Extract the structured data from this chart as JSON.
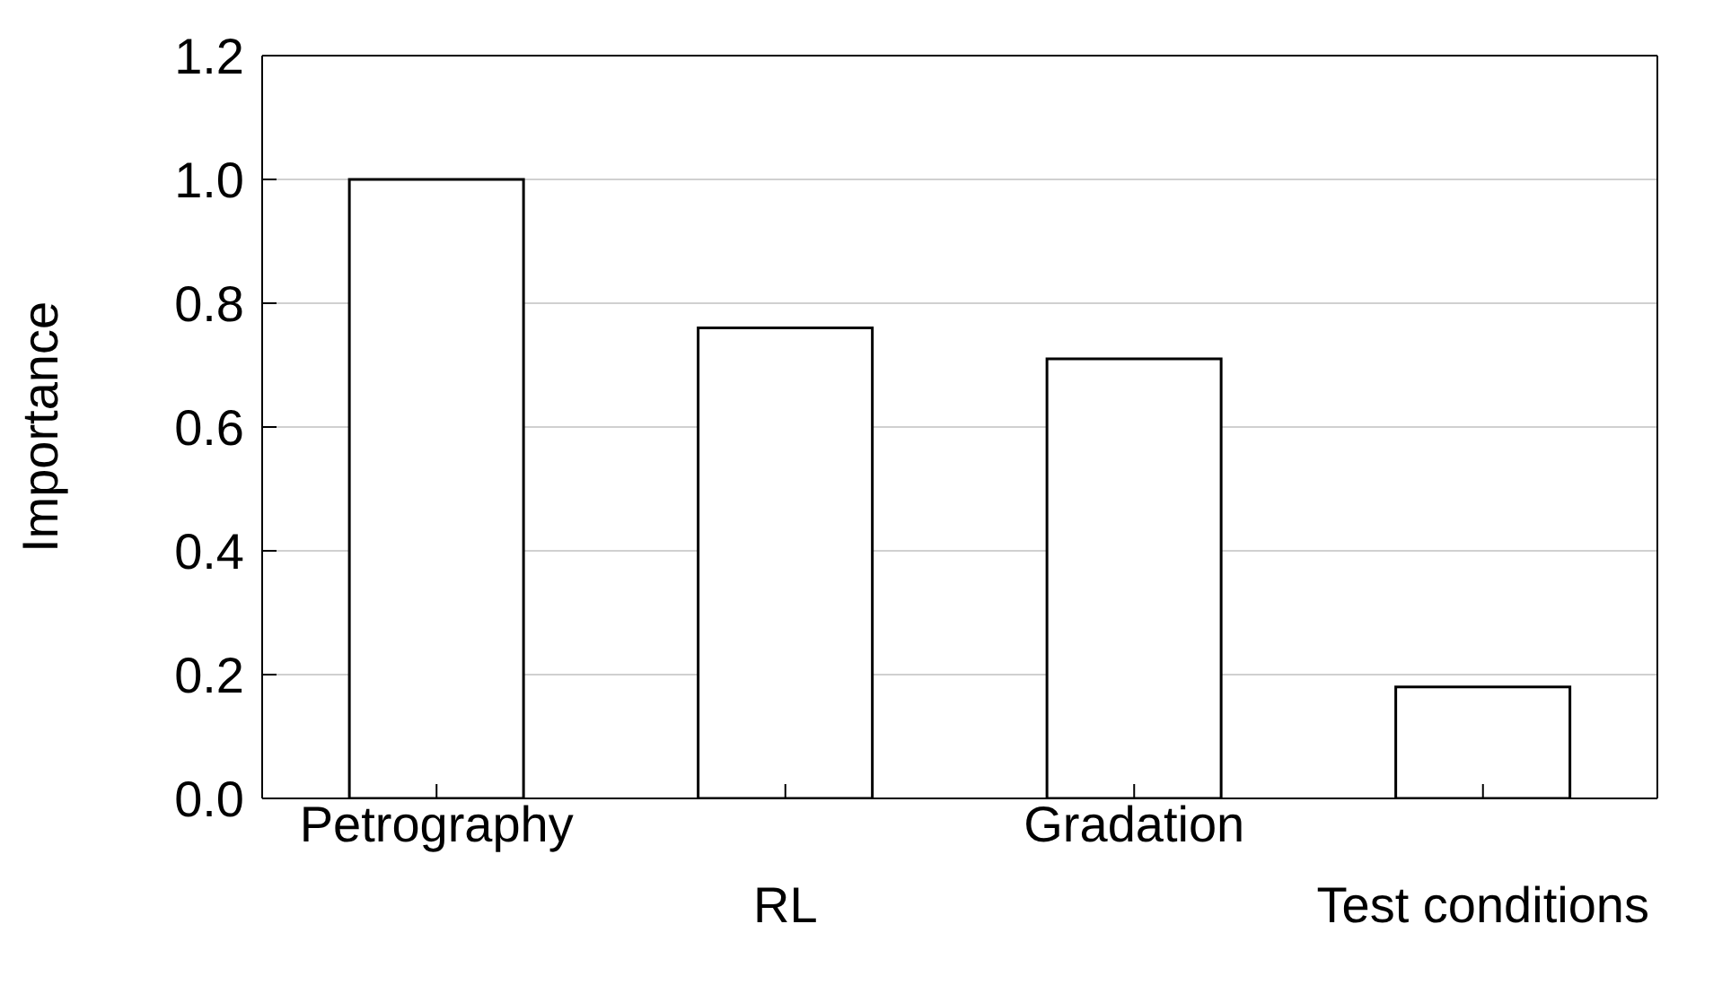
{
  "chart_data": {
    "type": "bar",
    "ylabel": "Importance",
    "categories": [
      "Petrography",
      "RL",
      "Gradation",
      "Test conditions"
    ],
    "values": [
      1.0,
      0.76,
      0.71,
      0.18
    ],
    "color": "#ffffff",
    "ylim": [
      0,
      1.2
    ],
    "yticks": [
      {
        "value": 0,
        "label": "0.0"
      },
      {
        "value": 0.2,
        "label": "0.2"
      },
      {
        "value": 0.4,
        "label": "0.4"
      },
      {
        "value": 0.6,
        "label": "0.6"
      },
      {
        "value": 0.8,
        "label": "0.8"
      },
      {
        "value": 1,
        "label": "1.0"
      },
      {
        "value": 1.2,
        "label": "1.2"
      }
    ],
    "grid": "y"
  }
}
